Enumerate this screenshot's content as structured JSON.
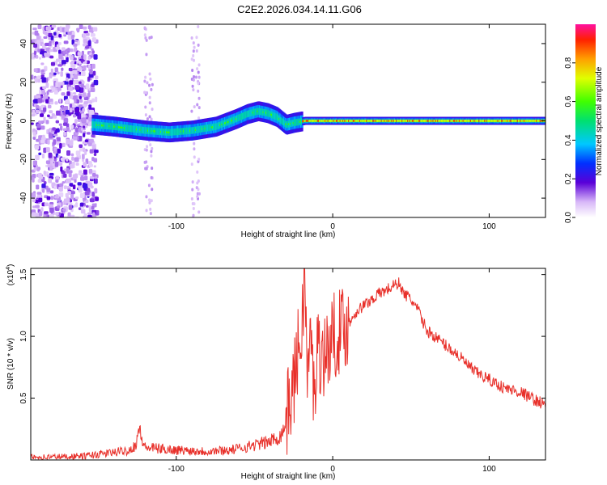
{
  "title": "C2E2.2026.034.14.11.G06",
  "chart_data": [
    {
      "type": "heatmap",
      "xlabel": "Height of straight line (km)",
      "ylabel": "Frequency (Hz)",
      "xlim": [
        -193,
        136
      ],
      "ylim": [
        -50,
        50
      ],
      "xticks": [
        -100,
        0,
        100
      ],
      "yticks": [
        -40,
        -20,
        0,
        20,
        40
      ],
      "colorbar": {
        "label": "Normalized spectral amplitude",
        "range": [
          0,
          1
        ],
        "ticks": [
          0.0,
          0.2,
          0.4,
          0.6,
          0.8
        ]
      },
      "ridge": {
        "x": [
          -153,
          -140,
          -120,
          -105,
          -90,
          -75,
          -62,
          -55,
          -48,
          -42,
          -36,
          -30,
          -25,
          -18,
          -10,
          0,
          20,
          60,
          136
        ],
        "y": [
          -2,
          -3,
          -5,
          -6,
          -5,
          -3,
          1,
          3.5,
          5,
          4,
          2,
          -2,
          -1,
          0,
          0,
          0,
          0,
          0,
          0
        ]
      }
    },
    {
      "type": "line",
      "xlabel": "Height of straight line (km)",
      "ylabel": "SNR (10 * v/v)",
      "y_multiplier": "(x10",
      "y_multiplier_exp": "4",
      "y_multiplier_close": ")",
      "xlim": [
        -193,
        136
      ],
      "ylim": [
        0,
        1.55
      ],
      "xticks": [
        -100,
        0,
        100
      ],
      "yticks": [
        0.5,
        1.0,
        1.5
      ],
      "series": [
        {
          "color": "#e8302a",
          "x": [
            -193,
            -160,
            -140,
            -130,
            -126,
            -124,
            -120,
            -100,
            -80,
            -65,
            -50,
            -40,
            -33,
            -30,
            -28,
            -25,
            -22,
            -20,
            -18,
            -16,
            -14,
            -12,
            -10,
            -5,
            0,
            5,
            10,
            15,
            20,
            25,
            30,
            35,
            40,
            43,
            45,
            50,
            55,
            60,
            70,
            80,
            90,
            100,
            110,
            120,
            130,
            136
          ],
          "y": [
            0.02,
            0.03,
            0.06,
            0.08,
            0.12,
            0.25,
            0.1,
            0.08,
            0.07,
            0.08,
            0.12,
            0.15,
            0.2,
            0.3,
            0.45,
            0.6,
            0.9,
            1.0,
            1.5,
            0.6,
            1.05,
            0.5,
            0.9,
            0.85,
            1.0,
            1.05,
            1.1,
            1.2,
            1.25,
            1.3,
            1.35,
            1.38,
            1.42,
            1.43,
            1.35,
            1.3,
            1.2,
            1.05,
            0.95,
            0.85,
            0.72,
            0.65,
            0.58,
            0.55,
            0.48,
            0.45
          ]
        }
      ]
    }
  ]
}
